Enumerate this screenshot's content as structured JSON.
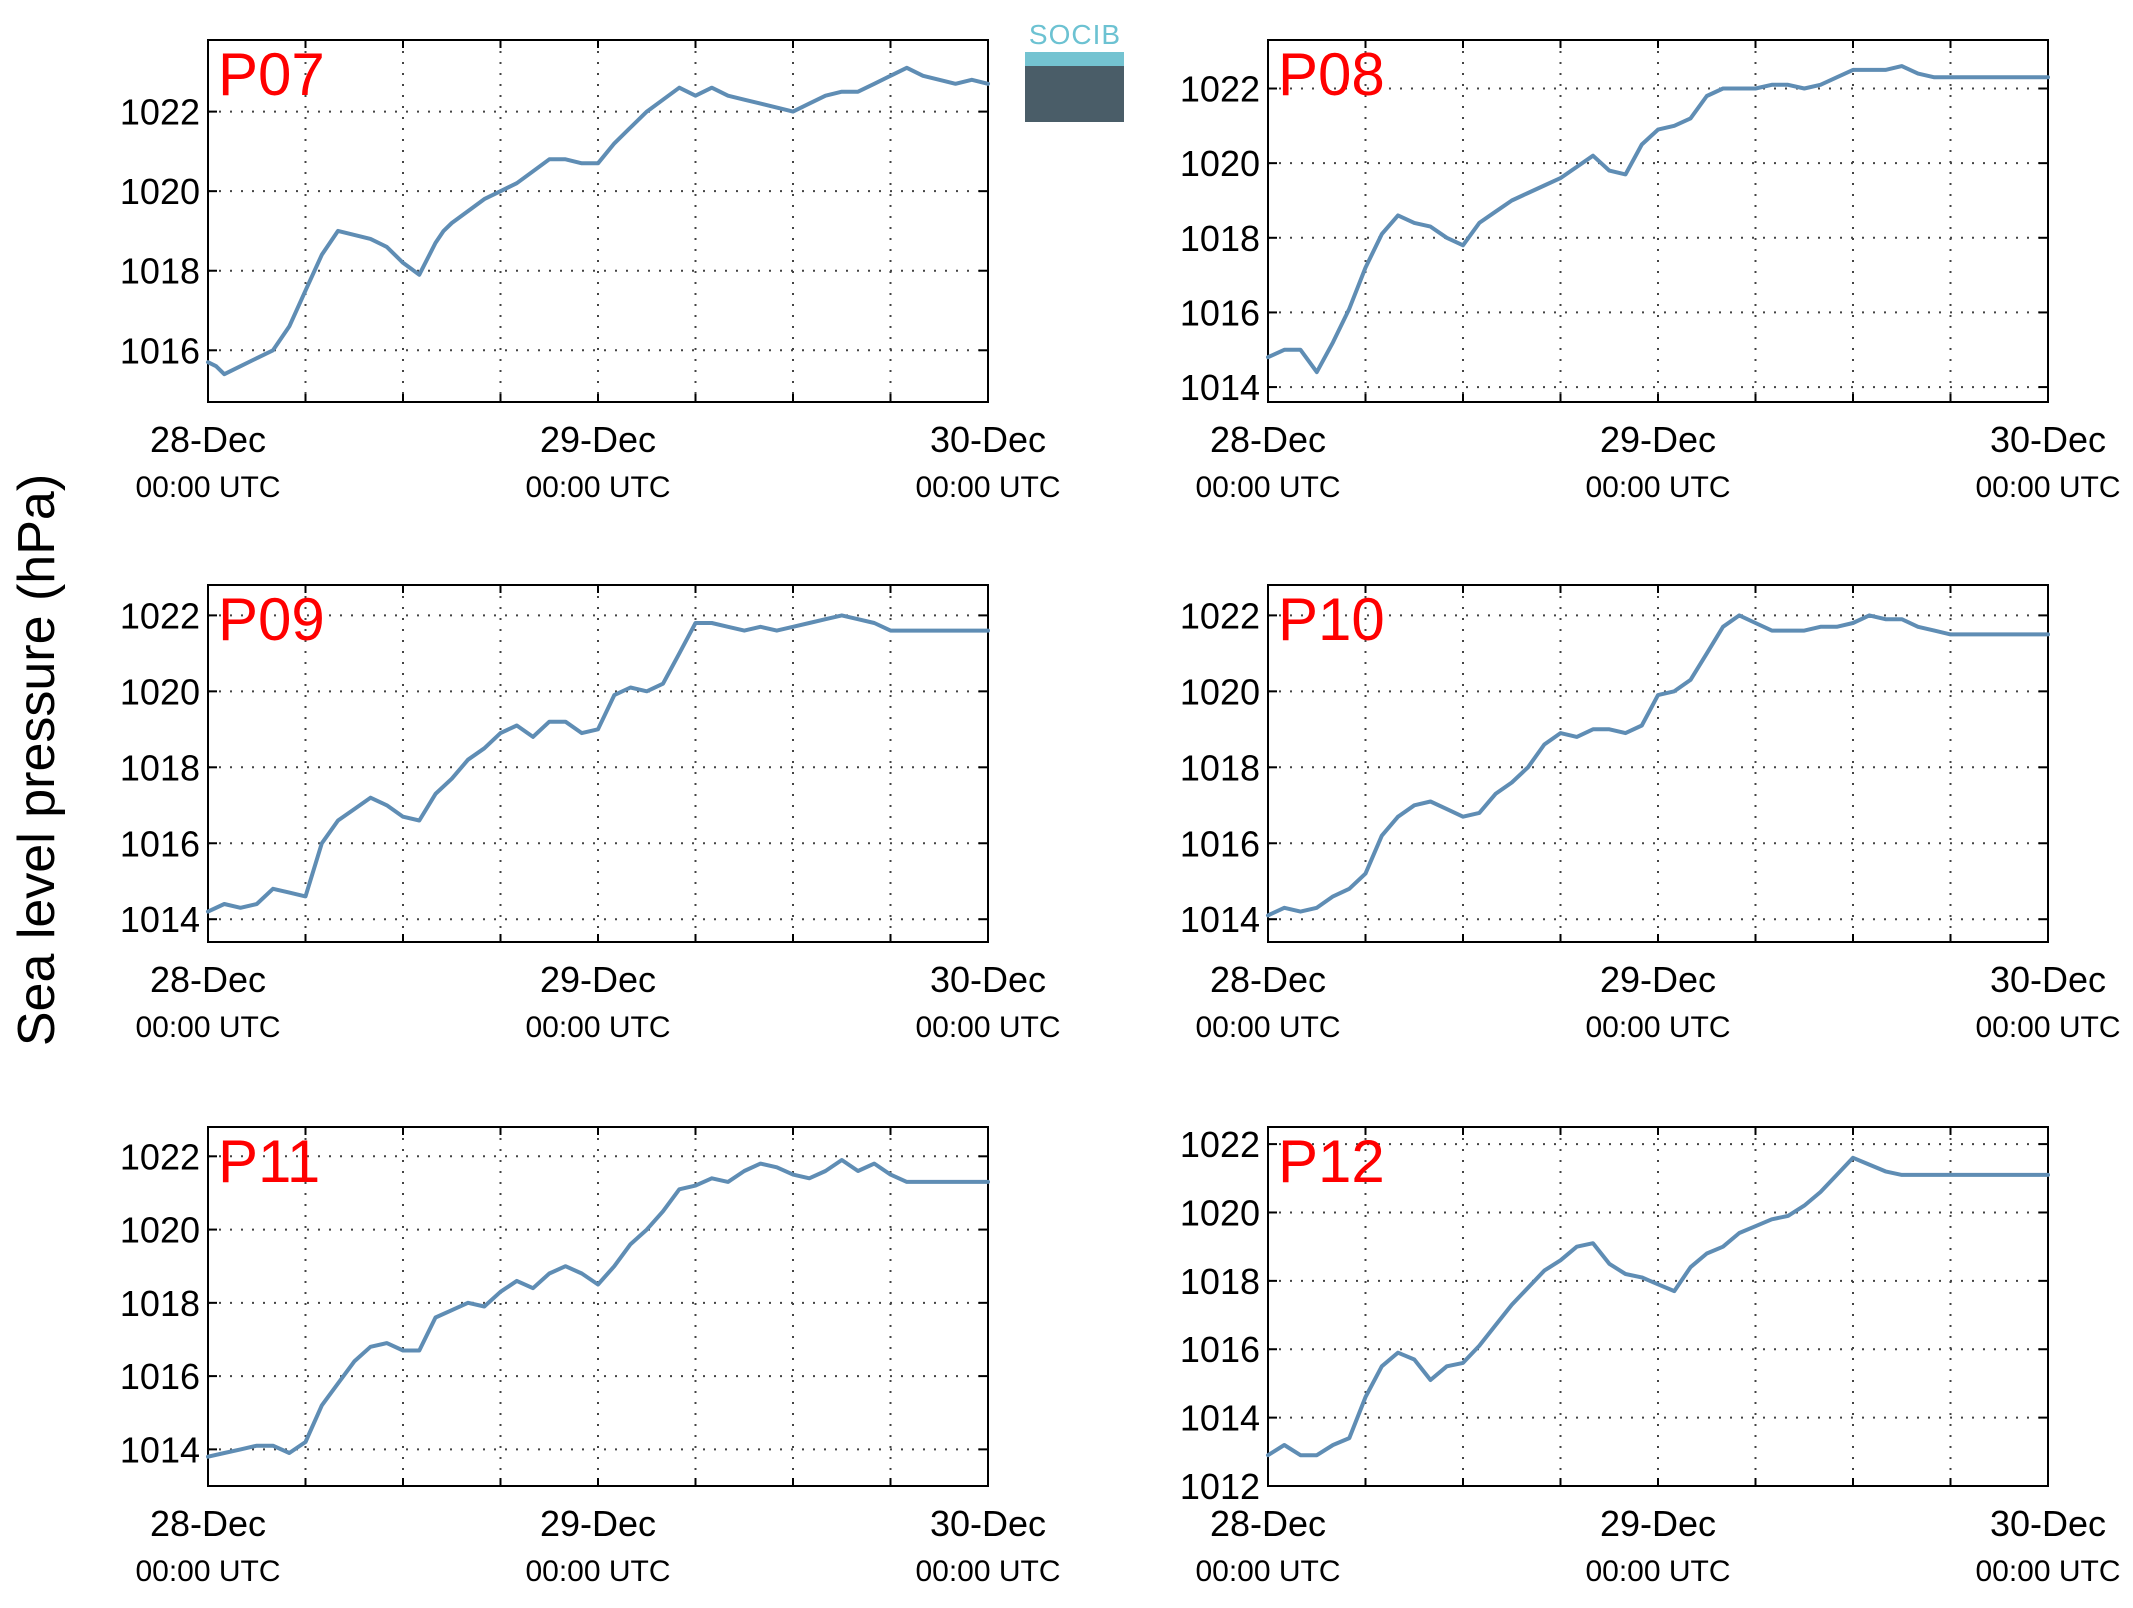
{
  "figure": {
    "ylabel": "Sea level pressure (hPa)",
    "logo_text": "SOCIB",
    "line_color": "#5f8db4",
    "label_color": "#ff0000",
    "grid": true
  },
  "chart_data": [
    {
      "type": "line",
      "label": "P07",
      "x_start": "28-Dec 00:00 UTC",
      "x_end": "30-Dec 00:00 UTC",
      "xlim": [
        0,
        48
      ],
      "ylim": [
        1014.7,
        1023.8
      ],
      "yticks": [
        1016,
        1018,
        1020,
        1022
      ],
      "xtick_labels": [
        {
          "date": "28-Dec",
          "time": "00:00 UTC"
        },
        {
          "date": "29-Dec",
          "time": "00:00 UTC"
        },
        {
          "date": "30-Dec",
          "time": "00:00 UTC"
        }
      ],
      "x": [
        0,
        0.5,
        1,
        1.5,
        2,
        3,
        4,
        5,
        6,
        7,
        8,
        9,
        10,
        11,
        12,
        13,
        14,
        14.5,
        15,
        16,
        17,
        18,
        19,
        20,
        21,
        22,
        23,
        24,
        25,
        26,
        27,
        28,
        29,
        30,
        31,
        32,
        33,
        34,
        35,
        36,
        37,
        38,
        39,
        40,
        41,
        42,
        43,
        44,
        45,
        46,
        47,
        48
      ],
      "y": [
        1015.7,
        1015.6,
        1015.4,
        1015.5,
        1015.6,
        1015.8,
        1016.0,
        1016.6,
        1017.5,
        1018.4,
        1019.0,
        1018.9,
        1018.8,
        1018.6,
        1018.2,
        1017.9,
        1018.7,
        1019.0,
        1019.2,
        1019.5,
        1019.8,
        1020.0,
        1020.2,
        1020.5,
        1020.8,
        1020.8,
        1020.7,
        1020.7,
        1021.2,
        1021.6,
        1022.0,
        1022.3,
        1022.6,
        1022.4,
        1022.6,
        1022.4,
        1022.3,
        1022.2,
        1022.1,
        1022.0,
        1022.2,
        1022.4,
        1022.5,
        1022.5,
        1022.7,
        1022.9,
        1023.1,
        1022.9,
        1022.8,
        1022.7,
        1022.8,
        1022.7
      ]
    },
    {
      "type": "line",
      "label": "P08",
      "x_start": "28-Dec 00:00 UTC",
      "x_end": "30-Dec 00:00 UTC",
      "xlim": [
        0,
        48
      ],
      "ylim": [
        1013.6,
        1023.3
      ],
      "yticks": [
        1014,
        1016,
        1018,
        1020,
        1022
      ],
      "xtick_labels": [
        {
          "date": "28-Dec",
          "time": "00:00 UTC"
        },
        {
          "date": "29-Dec",
          "time": "00:00 UTC"
        },
        {
          "date": "30-Dec",
          "time": "00:00 UTC"
        }
      ],
      "x": [
        0,
        1,
        2,
        3,
        4,
        5,
        6,
        7,
        8,
        9,
        10,
        11,
        12,
        13,
        14,
        15,
        16,
        17,
        18,
        19,
        20,
        21,
        22,
        23,
        24,
        25,
        26,
        27,
        28,
        29,
        30,
        31,
        32,
        33,
        34,
        35,
        36,
        37,
        38,
        39,
        40,
        41,
        42,
        43,
        44,
        45,
        46,
        47,
        48
      ],
      "y": [
        1014.8,
        1015.0,
        1015.0,
        1014.4,
        1015.2,
        1016.1,
        1017.2,
        1018.1,
        1018.6,
        1018.4,
        1018.3,
        1018.0,
        1017.8,
        1018.4,
        1018.7,
        1019.0,
        1019.2,
        1019.4,
        1019.6,
        1019.9,
        1020.2,
        1019.8,
        1019.7,
        1020.5,
        1020.9,
        1021.0,
        1021.2,
        1021.8,
        1022.0,
        1022.0,
        1022.0,
        1022.1,
        1022.1,
        1022.0,
        1022.1,
        1022.3,
        1022.5,
        1022.5,
        1022.5,
        1022.6,
        1022.4,
        1022.3,
        1022.3,
        1022.3,
        1022.3,
        1022.3,
        1022.3,
        1022.3,
        1022.3
      ]
    },
    {
      "type": "line",
      "label": "P09",
      "x_start": "28-Dec 00:00 UTC",
      "x_end": "30-Dec 00:00 UTC",
      "xlim": [
        0,
        48
      ],
      "ylim": [
        1013.4,
        1022.8
      ],
      "yticks": [
        1014,
        1016,
        1018,
        1020,
        1022
      ],
      "xtick_labels": [
        {
          "date": "28-Dec",
          "time": "00:00 UTC"
        },
        {
          "date": "29-Dec",
          "time": "00:00 UTC"
        },
        {
          "date": "30-Dec",
          "time": "00:00 UTC"
        }
      ],
      "x": [
        0,
        1,
        2,
        3,
        4,
        5,
        6,
        7,
        8,
        9,
        10,
        11,
        12,
        13,
        14,
        15,
        16,
        17,
        18,
        19,
        20,
        21,
        22,
        23,
        24,
        25,
        26,
        27,
        28,
        29,
        30,
        31,
        32,
        33,
        34,
        35,
        36,
        37,
        38,
        39,
        40,
        41,
        42,
        43,
        44,
        45,
        46,
        47,
        48
      ],
      "y": [
        1014.2,
        1014.4,
        1014.3,
        1014.4,
        1014.8,
        1014.7,
        1014.6,
        1016.0,
        1016.6,
        1016.9,
        1017.2,
        1017.0,
        1016.7,
        1016.6,
        1017.3,
        1017.7,
        1018.2,
        1018.5,
        1018.9,
        1019.1,
        1018.8,
        1019.2,
        1019.2,
        1018.9,
        1019.0,
        1019.9,
        1020.1,
        1020.0,
        1020.2,
        1021.0,
        1021.8,
        1021.8,
        1021.7,
        1021.6,
        1021.7,
        1021.6,
        1021.7,
        1021.8,
        1021.9,
        1022.0,
        1021.9,
        1021.8,
        1021.6,
        1021.6,
        1021.6,
        1021.6,
        1021.6,
        1021.6,
        1021.6
      ]
    },
    {
      "type": "line",
      "label": "P10",
      "x_start": "28-Dec 00:00 UTC",
      "x_end": "30-Dec 00:00 UTC",
      "xlim": [
        0,
        48
      ],
      "ylim": [
        1013.4,
        1022.8
      ],
      "yticks": [
        1014,
        1016,
        1018,
        1020,
        1022
      ],
      "xtick_labels": [
        {
          "date": "28-Dec",
          "time": "00:00 UTC"
        },
        {
          "date": "29-Dec",
          "time": "00:00 UTC"
        },
        {
          "date": "30-Dec",
          "time": "00:00 UTC"
        }
      ],
      "x": [
        0,
        1,
        2,
        3,
        4,
        5,
        6,
        7,
        8,
        9,
        10,
        11,
        12,
        13,
        14,
        15,
        16,
        17,
        18,
        19,
        20,
        21,
        22,
        23,
        24,
        25,
        26,
        27,
        28,
        29,
        30,
        31,
        32,
        33,
        34,
        35,
        36,
        37,
        38,
        39,
        40,
        41,
        42,
        43,
        44,
        45,
        46,
        47,
        48
      ],
      "y": [
        1014.1,
        1014.3,
        1014.2,
        1014.3,
        1014.6,
        1014.8,
        1015.2,
        1016.2,
        1016.7,
        1017.0,
        1017.1,
        1016.9,
        1016.7,
        1016.8,
        1017.3,
        1017.6,
        1018.0,
        1018.6,
        1018.9,
        1018.8,
        1019.0,
        1019.0,
        1018.9,
        1019.1,
        1019.9,
        1020.0,
        1020.3,
        1021.0,
        1021.7,
        1022.0,
        1021.8,
        1021.6,
        1021.6,
        1021.6,
        1021.7,
        1021.7,
        1021.8,
        1022.0,
        1021.9,
        1021.9,
        1021.7,
        1021.6,
        1021.5,
        1021.5,
        1021.5,
        1021.5,
        1021.5,
        1021.5,
        1021.5
      ]
    },
    {
      "type": "line",
      "label": "P11",
      "x_start": "28-Dec 00:00 UTC",
      "x_end": "30-Dec 00:00 UTC",
      "xlim": [
        0,
        48
      ],
      "ylim": [
        1013.0,
        1022.8
      ],
      "yticks": [
        1014,
        1016,
        1018,
        1020,
        1022
      ],
      "xtick_labels": [
        {
          "date": "28-Dec",
          "time": "00:00 UTC"
        },
        {
          "date": "29-Dec",
          "time": "00:00 UTC"
        },
        {
          "date": "30-Dec",
          "time": "00:00 UTC"
        }
      ],
      "x": [
        0,
        1,
        2,
        3,
        4,
        5,
        6,
        7,
        8,
        9,
        10,
        11,
        12,
        13,
        14,
        15,
        16,
        17,
        18,
        19,
        20,
        21,
        22,
        23,
        24,
        25,
        26,
        27,
        28,
        29,
        30,
        31,
        32,
        33,
        34,
        35,
        36,
        37,
        38,
        39,
        40,
        41,
        42,
        43,
        44,
        45,
        46,
        47,
        48
      ],
      "y": [
        1013.8,
        1013.9,
        1014.0,
        1014.1,
        1014.1,
        1013.9,
        1014.2,
        1015.2,
        1015.8,
        1016.4,
        1016.8,
        1016.9,
        1016.7,
        1016.7,
        1017.6,
        1017.8,
        1018.0,
        1017.9,
        1018.3,
        1018.6,
        1018.4,
        1018.8,
        1019.0,
        1018.8,
        1018.5,
        1019.0,
        1019.6,
        1020.0,
        1020.5,
        1021.1,
        1021.2,
        1021.4,
        1021.3,
        1021.6,
        1021.8,
        1021.7,
        1021.5,
        1021.4,
        1021.6,
        1021.9,
        1021.6,
        1021.8,
        1021.5,
        1021.3,
        1021.3,
        1021.3,
        1021.3,
        1021.3,
        1021.3
      ]
    },
    {
      "type": "line",
      "label": "P12",
      "x_start": "28-Dec 00:00 UTC",
      "x_end": "30-Dec 00:00 UTC",
      "xlim": [
        0,
        48
      ],
      "ylim": [
        1012.0,
        1022.5
      ],
      "yticks": [
        1012,
        1014,
        1016,
        1018,
        1020,
        1022
      ],
      "xtick_labels": [
        {
          "date": "28-Dec",
          "time": "00:00 UTC"
        },
        {
          "date": "29-Dec",
          "time": "00:00 UTC"
        },
        {
          "date": "30-Dec",
          "time": "00:00 UTC"
        }
      ],
      "x": [
        0,
        1,
        2,
        3,
        4,
        5,
        6,
        7,
        8,
        9,
        10,
        11,
        12,
        13,
        14,
        15,
        16,
        17,
        18,
        19,
        20,
        21,
        22,
        23,
        24,
        25,
        26,
        27,
        28,
        29,
        30,
        31,
        32,
        33,
        34,
        35,
        36,
        37,
        38,
        39,
        40,
        41,
        42,
        43,
        44,
        45,
        46,
        47,
        48
      ],
      "y": [
        1012.9,
        1013.2,
        1012.9,
        1012.9,
        1013.2,
        1013.4,
        1014.6,
        1015.5,
        1015.9,
        1015.7,
        1015.1,
        1015.5,
        1015.6,
        1016.1,
        1016.7,
        1017.3,
        1017.8,
        1018.3,
        1018.6,
        1019.0,
        1019.1,
        1018.5,
        1018.2,
        1018.1,
        1017.9,
        1017.7,
        1018.4,
        1018.8,
        1019.0,
        1019.4,
        1019.6,
        1019.8,
        1019.9,
        1020.2,
        1020.6,
        1021.1,
        1021.6,
        1021.4,
        1021.2,
        1021.1,
        1021.1,
        1021.1,
        1021.1,
        1021.1,
        1021.1,
        1021.1,
        1021.1,
        1021.1,
        1021.1
      ]
    }
  ]
}
